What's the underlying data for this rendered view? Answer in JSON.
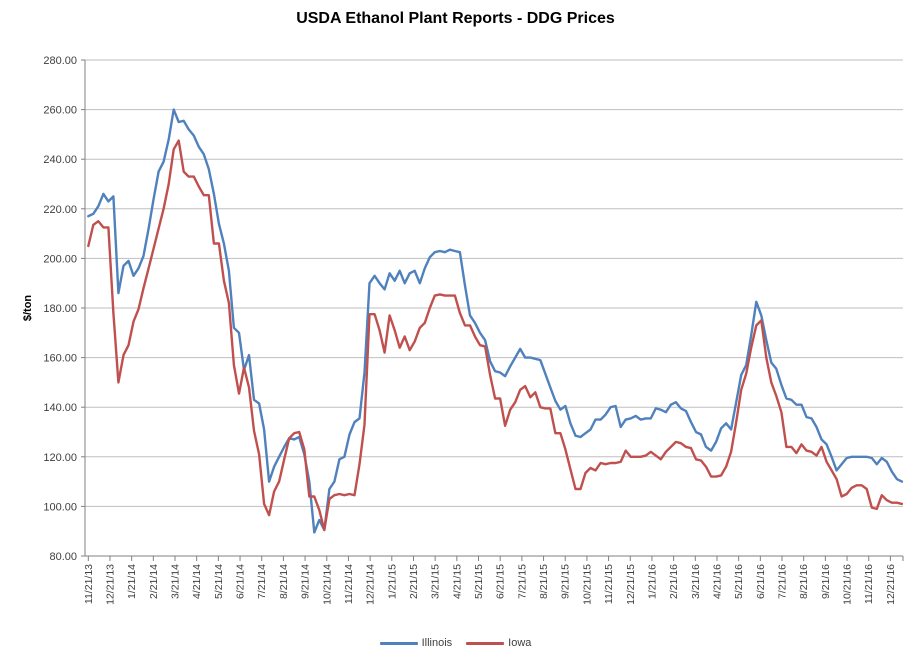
{
  "chart_data": {
    "type": "line",
    "title": "USDA Ethanol Plant Reports - DDG Prices",
    "xlabel": "",
    "ylabel": "$/ton",
    "ylim": [
      80,
      280
    ],
    "ytick_step": 20,
    "ytick_labels": [
      "80.00",
      "100.00",
      "120.00",
      "140.00",
      "160.00",
      "180.00",
      "200.00",
      "220.00",
      "240.00",
      "260.00",
      "280.00"
    ],
    "x_frequency": "weekly",
    "grid": "horizontal",
    "legend_position": "bottom",
    "background_color": "#ffffff",
    "grid_color": "#bfbfbf",
    "axis_color": "#808080",
    "label_color": "#3f3f3f",
    "x_tick_labels": [
      "11/21/13",
      "12/21/13",
      "1/21/14",
      "2/21/14",
      "3/21/14",
      "4/21/14",
      "5/21/14",
      "6/21/14",
      "7/21/14",
      "8/21/14",
      "9/21/14",
      "10/21/14",
      "11/21/14",
      "12/21/14",
      "1/21/15",
      "2/21/15",
      "3/21/15",
      "4/21/15",
      "5/21/15",
      "6/21/15",
      "7/21/15",
      "8/21/15",
      "9/21/15",
      "10/21/15",
      "11/21/15",
      "12/21/15",
      "1/21/16",
      "2/21/16",
      "3/21/16",
      "4/21/16",
      "5/21/16",
      "6/21/16",
      "7/21/16",
      "8/21/16",
      "9/21/16",
      "10/21/16",
      "11/21/16",
      "12/21/16"
    ],
    "series": [
      {
        "name": "Illinois",
        "color": "#4F81BD",
        "values": [
          217,
          218,
          221,
          226,
          223,
          225,
          186,
          197,
          199,
          193,
          196,
          201,
          212,
          224,
          235,
          239,
          248,
          260,
          255,
          255.5,
          252,
          249.5,
          245,
          242,
          236,
          226,
          214,
          206,
          195,
          172,
          170,
          155,
          161,
          143,
          141.5,
          131,
          110,
          116,
          120,
          124,
          127.5,
          127,
          128,
          121,
          110,
          89.5,
          94.5,
          90.5,
          107,
          110,
          119,
          120,
          129,
          134,
          135.5,
          154,
          190,
          193,
          190,
          187.5,
          194,
          191,
          195,
          190,
          194,
          195,
          190,
          196,
          200.5,
          202.5,
          203,
          202.5,
          203.5,
          203,
          202.5,
          189,
          177,
          174,
          170,
          167,
          158.5,
          154.5,
          154,
          152.5,
          156.5,
          160,
          163.5,
          160,
          160,
          159.5,
          159,
          153.5,
          148,
          142.5,
          139,
          140.5,
          133.5,
          128.5,
          128,
          129.5,
          131,
          135,
          135,
          137,
          140,
          140.5,
          132,
          135,
          135.5,
          136.5,
          135,
          135.5,
          135.5,
          139.5,
          139,
          138,
          141,
          142,
          139.5,
          138.5,
          134,
          130,
          129,
          124,
          122.5,
          126,
          131.5,
          133.5,
          131,
          142,
          153,
          157,
          169,
          182.5,
          177,
          167,
          158,
          155.5,
          149,
          143.5,
          143,
          141,
          141,
          136,
          135.5,
          132,
          127,
          125,
          120,
          114.5,
          117,
          119.5,
          120,
          120,
          120,
          120,
          119.5,
          117,
          119.5,
          118,
          114,
          111,
          110
        ]
      },
      {
        "name": "Iowa",
        "color": "#C0504D",
        "values": [
          205,
          213.5,
          215,
          212.5,
          212.5,
          178,
          150,
          161,
          165,
          174.5,
          179.5,
          188,
          196,
          204,
          212,
          220,
          230,
          244,
          247.5,
          235,
          233,
          233,
          229,
          225.5,
          225.5,
          206,
          206,
          191,
          182,
          157,
          145.5,
          156,
          148,
          130.5,
          121,
          101,
          96.5,
          106,
          110,
          119,
          127.5,
          129.5,
          130,
          123,
          104,
          104,
          98.5,
          90.5,
          103,
          104.5,
          105,
          104.5,
          105,
          104.5,
          117,
          133,
          177.5,
          177.5,
          171,
          162,
          177,
          171,
          164,
          168.5,
          163,
          166.5,
          172,
          174,
          180,
          185,
          185.5,
          185,
          185,
          185,
          178,
          173,
          173,
          168.5,
          165,
          164.5,
          153,
          143.5,
          143.5,
          132.5,
          139,
          142,
          147,
          148.5,
          144,
          146,
          140,
          139.5,
          139.5,
          129.5,
          129.5,
          123,
          115,
          107,
          107,
          113.5,
          115.5,
          114.5,
          117.5,
          117,
          117.5,
          117.5,
          118,
          122.5,
          120,
          120,
          120,
          120.5,
          122,
          120.5,
          119,
          122,
          124,
          126,
          125.5,
          124,
          123.5,
          119,
          118.5,
          116,
          112,
          112,
          112.5,
          116,
          122,
          134,
          147,
          153.5,
          164,
          173,
          175,
          160,
          150,
          144.5,
          138,
          124,
          124,
          121.5,
          125,
          122.5,
          122,
          120.5,
          124,
          118,
          114.5,
          111,
          104,
          105,
          107.5,
          108.5,
          108.5,
          107,
          99.5,
          99,
          104.5,
          102.5,
          101.5,
          101.5,
          101
        ]
      }
    ]
  }
}
